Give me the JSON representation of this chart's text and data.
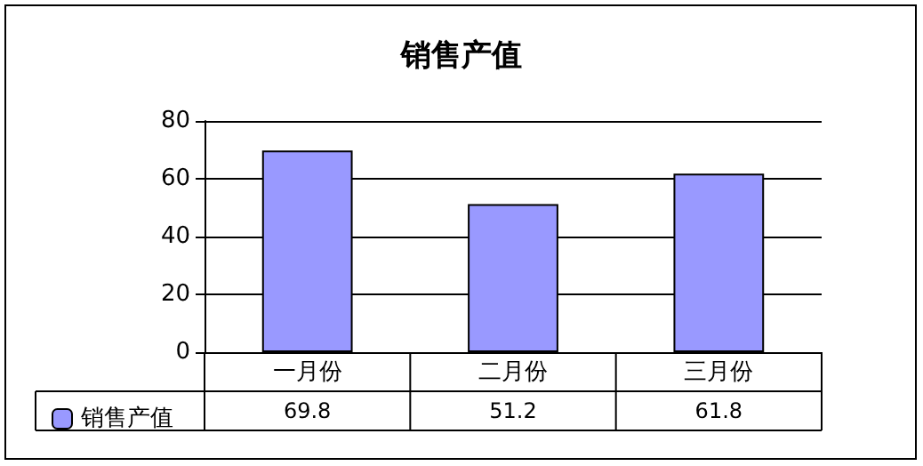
{
  "chart_data": {
    "type": "bar",
    "title": "销售产值",
    "categories": [
      "一月份",
      "二月份",
      "三月份"
    ],
    "series": [
      {
        "name": "销售产值",
        "color": "#9999ff",
        "values": [
          69.8,
          51.2,
          61.8
        ]
      }
    ],
    "ylim": [
      0,
      80
    ],
    "yticks": [
      0,
      20,
      40,
      60,
      80
    ],
    "grid": "y",
    "legend": "bottom left",
    "data_labels": true
  }
}
